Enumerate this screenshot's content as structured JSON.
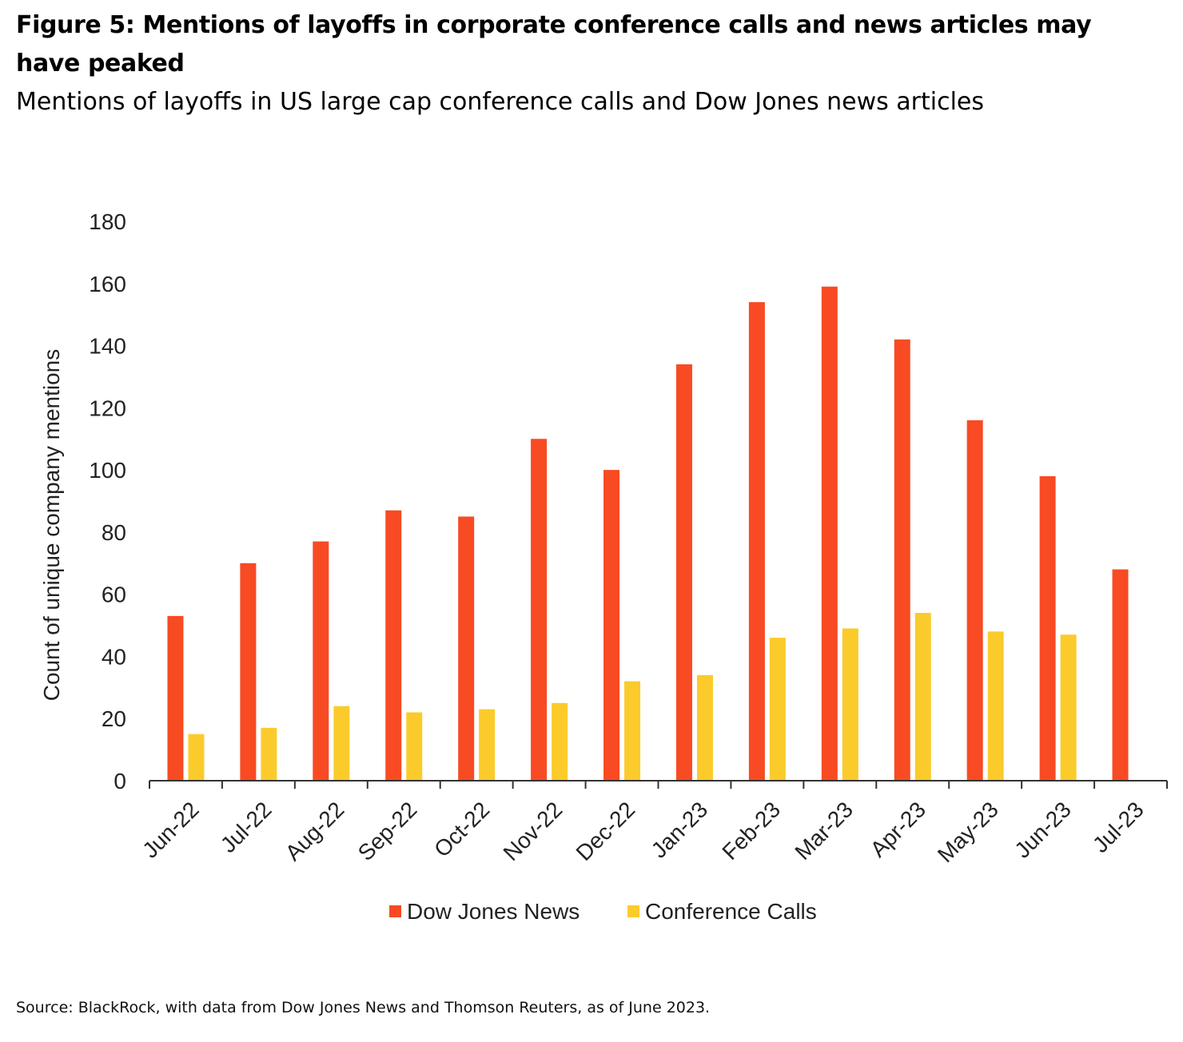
{
  "figure": {
    "title": "Figure 5: Mentions of layoffs in corporate conference calls and news articles may have peaked",
    "subtitle": "Mentions of layoffs in US large cap conference calls and Dow Jones news articles",
    "source": "Source: BlackRock, with data from Dow Jones News and Thomson Reuters, as of June 2023."
  },
  "chart_data": {
    "type": "bar",
    "categories": [
      "Jun-22",
      "Jul-22",
      "Aug-22",
      "Sep-22",
      "Oct-22",
      "Nov-22",
      "Dec-22",
      "Jan-23",
      "Feb-23",
      "Mar-23",
      "Apr-23",
      "May-23",
      "Jun-23",
      "Jul-23"
    ],
    "series": [
      {
        "name": "Dow Jones News",
        "color": "#F84A23",
        "values": [
          53,
          70,
          77,
          87,
          85,
          110,
          100,
          134,
          154,
          159,
          142,
          116,
          98,
          68
        ]
      },
      {
        "name": "Conference Calls",
        "color": "#FBCB2B",
        "values": [
          15,
          17,
          24,
          22,
          23,
          25,
          32,
          34,
          46,
          49,
          54,
          48,
          47,
          null
        ]
      }
    ],
    "xlabel": "",
    "ylabel": "Count of unique company mentions",
    "ylim": [
      0,
      180
    ],
    "yticks": [
      "0",
      "20",
      "40",
      "60",
      "80",
      "100",
      "120",
      "140",
      "160",
      "180"
    ],
    "grid": false,
    "legend_position": "bottom-center"
  }
}
